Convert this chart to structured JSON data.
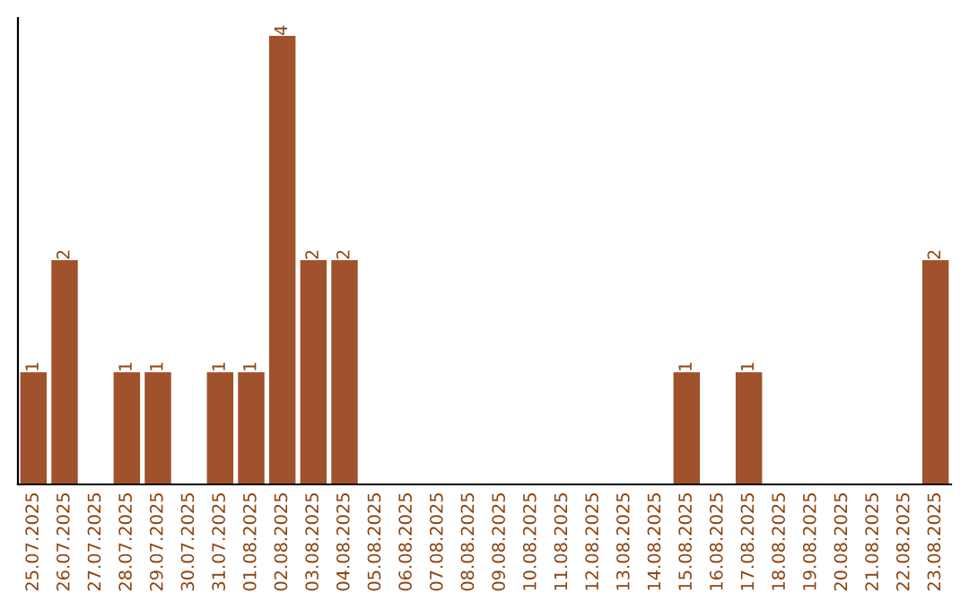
{
  "chart_data": {
    "type": "bar",
    "categories": [
      "25.07.2025",
      "26.07.2025",
      "27.07.2025",
      "28.07.2025",
      "29.07.2025",
      "30.07.2025",
      "31.07.2025",
      "01.08.2025",
      "02.08.2025",
      "03.08.2025",
      "04.08.2025",
      "05.08.2025",
      "06.08.2025",
      "07.08.2025",
      "08.08.2025",
      "09.08.2025",
      "10.08.2025",
      "11.08.2025",
      "12.08.2025",
      "13.08.2025",
      "14.08.2025",
      "15.08.2025",
      "16.08.2025",
      "17.08.2025",
      "18.08.2025",
      "19.08.2025",
      "20.08.2025",
      "21.08.2025",
      "22.08.2025",
      "23.08.2025"
    ],
    "values": [
      1,
      2,
      0,
      1,
      1,
      0,
      1,
      1,
      4,
      2,
      2,
      0,
      0,
      0,
      0,
      0,
      0,
      0,
      0,
      0,
      0,
      1,
      0,
      1,
      0,
      0,
      0,
      0,
      0,
      2
    ],
    "value_labels": [
      "1",
      "2",
      null,
      "1",
      "1",
      null,
      "1",
      "1",
      "4",
      "2",
      "2",
      null,
      null,
      null,
      null,
      null,
      null,
      null,
      null,
      null,
      null,
      "1",
      null,
      "1",
      null,
      null,
      null,
      null,
      null,
      "2"
    ],
    "color": "#a0522d",
    "grid": false
  }
}
